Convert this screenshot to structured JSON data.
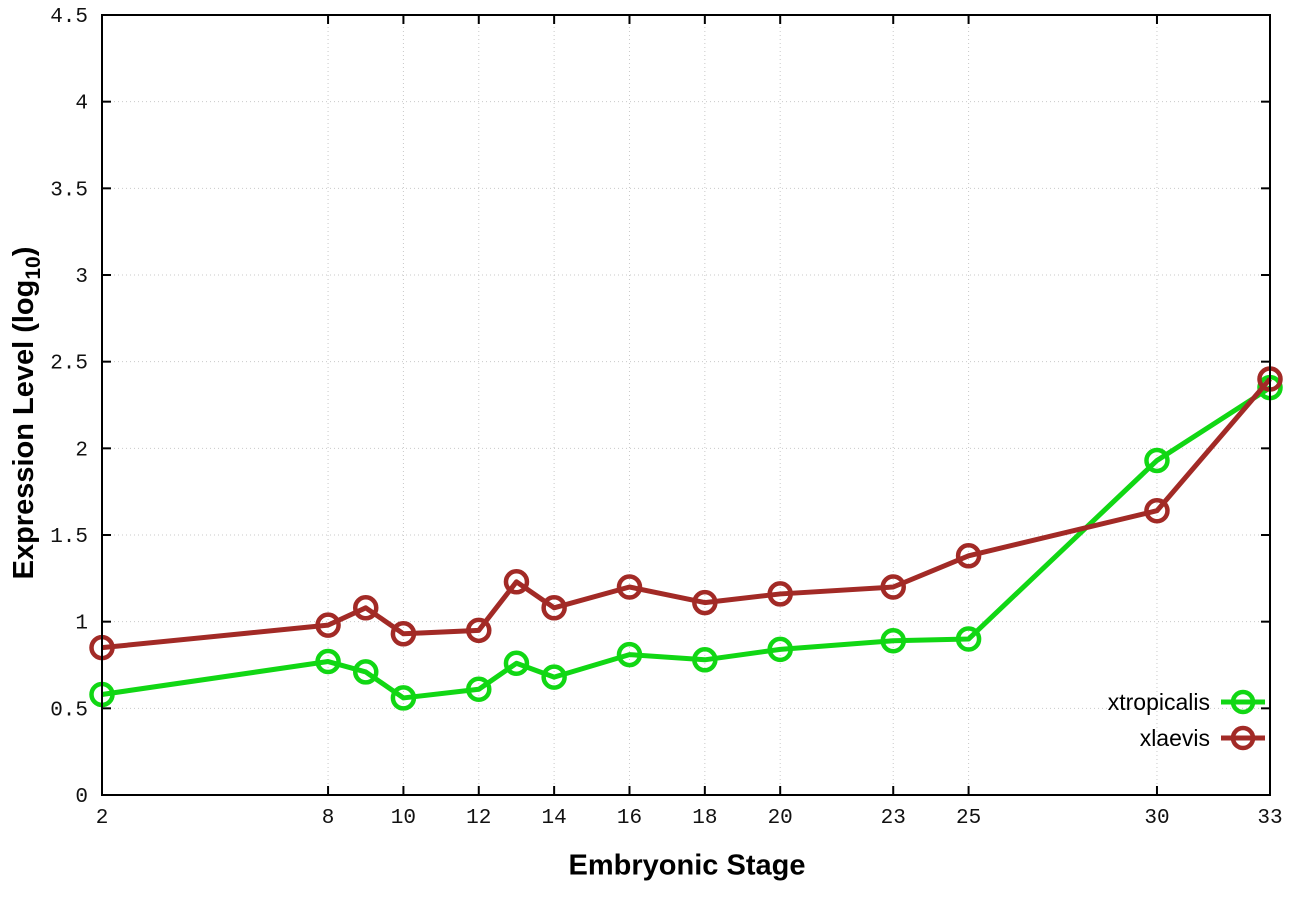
{
  "chart_data": {
    "type": "line",
    "title": "",
    "xlabel": "Embryonic Stage",
    "ylabel": "Expression Level (log10)",
    "ylabel_parts": {
      "pre": "Expression Level (log",
      "sub": "10",
      "post": ")"
    },
    "x": [
      2,
      8,
      9,
      10,
      12,
      13,
      14,
      16,
      18,
      20,
      23,
      25,
      30,
      33
    ],
    "series": [
      {
        "name": "xtropicalis",
        "color": "#11d714",
        "values": [
          0.58,
          0.77,
          0.71,
          0.56,
          0.61,
          0.76,
          0.68,
          0.81,
          0.78,
          0.84,
          0.89,
          0.9,
          1.93,
          2.35
        ]
      },
      {
        "name": "xlaevis",
        "color": "#a22a26",
        "values": [
          0.85,
          0.98,
          1.08,
          0.93,
          0.95,
          1.23,
          1.08,
          1.2,
          1.11,
          1.16,
          1.2,
          1.38,
          1.64,
          2.4
        ]
      }
    ],
    "x_ticks": [
      2,
      8,
      10,
      12,
      14,
      16,
      18,
      20,
      23,
      25,
      30,
      33
    ],
    "y_ticks": [
      0,
      0.5,
      1,
      1.5,
      2,
      2.5,
      3,
      3.5,
      4,
      4.5
    ],
    "xlim": [
      2,
      33
    ],
    "ylim": [
      0,
      4.5
    ],
    "grid": true,
    "legend_position": "bottom-right",
    "marker": "open-circle",
    "border_color": "#000000",
    "grid_color": "#c9c9c9"
  }
}
